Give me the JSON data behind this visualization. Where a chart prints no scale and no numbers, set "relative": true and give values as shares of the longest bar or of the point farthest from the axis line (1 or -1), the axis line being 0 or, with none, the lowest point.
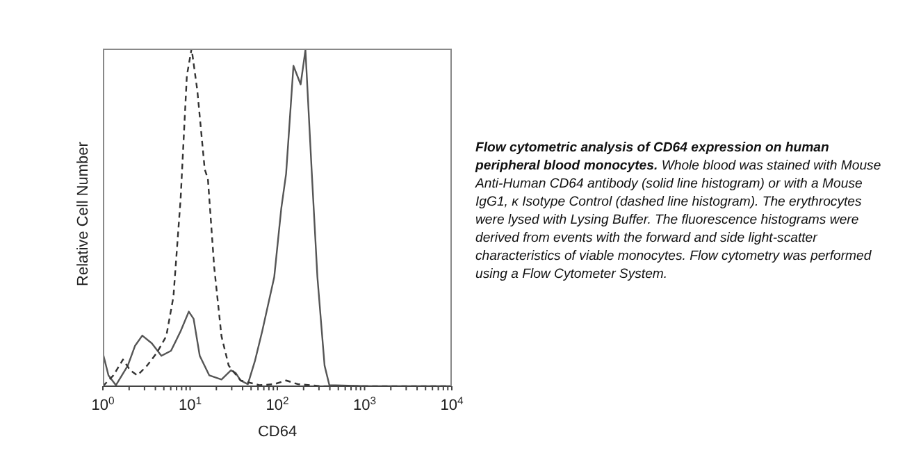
{
  "chart_data": {
    "type": "line",
    "relative": true,
    "log": "x",
    "title": "Flow cytometric analysis of CD64 expression on human peripheral blood monocytes.",
    "annotations": [
      "Whole blood was stained with Mouse Anti-Human CD64 antibody (solid line histogram) or with a Mouse IgG1, κ Isotype Control (dashed line histogram). The erythrocytes were lysed with Lysing Buffer. The fluorescence histograms were derived from events with the forward and side light-scatter characteristics of viable monocytes. Flow cytometry was performed using a Flow Cytometer System."
    ],
    "xlabel": "CD64",
    "ylabel": "Relative Cell Number",
    "xlim": [
      1,
      10000
    ],
    "xticks": [
      {
        "value": 1,
        "label": "10$^{0}$"
      },
      {
        "value": 2,
        "label": null
      },
      {
        "value": 3,
        "label": null
      },
      {
        "value": 4,
        "label": null
      },
      {
        "value": 5,
        "label": null
      },
      {
        "value": 6,
        "label": null
      },
      {
        "value": 7,
        "label": null
      },
      {
        "value": 8,
        "label": null
      },
      {
        "value": 9,
        "label": null
      },
      {
        "value": 10,
        "label": "10$^{1}$"
      },
      {
        "value": 20,
        "label": null
      },
      {
        "value": 30,
        "label": null
      },
      {
        "value": 40,
        "label": null
      },
      {
        "value": 50,
        "label": null
      },
      {
        "value": 60,
        "label": null
      },
      {
        "value": 70,
        "label": null
      },
      {
        "value": 80,
        "label": null
      },
      {
        "value": 90,
        "label": null
      },
      {
        "value": 100,
        "label": "10$^{2}$"
      },
      {
        "value": 200,
        "label": null
      },
      {
        "value": 300,
        "label": null
      },
      {
        "value": 400,
        "label": null
      },
      {
        "value": 500,
        "label": null
      },
      {
        "value": 600,
        "label": null
      },
      {
        "value": 700,
        "label": null
      },
      {
        "value": 800,
        "label": null
      },
      {
        "value": 900,
        "label": null
      },
      {
        "value": 1000,
        "label": "10$^{3}$"
      },
      {
        "value": 2000,
        "label": null
      },
      {
        "value": 3000,
        "label": null
      },
      {
        "value": 4000,
        "label": null
      },
      {
        "value": 5000,
        "label": null
      },
      {
        "value": 6000,
        "label": null
      },
      {
        "value": 7000,
        "label": null
      },
      {
        "value": 8000,
        "label": null
      },
      {
        "value": 9000,
        "label": null
      },
      {
        "value": 10000,
        "label": "10$^{4}$"
      }
    ],
    "grid": false,
    "legend": false,
    "marker": "none",
    "series": [
      {
        "color": "#555555",
        "line_style": "solid",
        "x": [
          1,
          1.16,
          1.41,
          1.93,
          2.34,
          2.83,
          3.64,
          4.69,
          6.04,
          7.79,
          9.66,
          10.96,
          12.9,
          16.6,
          22.9,
          29.4,
          33.4,
          37.9,
          45.9,
          55.5,
          67.1,
          92.1,
          111,
          126,
          153,
          185,
          210,
          247,
          288,
          348,
          395,
          1161,
          10000
        ],
        "values": [
          0.098,
          0.032,
          0.003,
          0.061,
          0.12,
          0.15,
          0.127,
          0.09,
          0.105,
          0.163,
          0.221,
          0.2,
          0.09,
          0.032,
          0.02,
          0.047,
          0.039,
          0.017,
          0.006,
          0.076,
          0.163,
          0.323,
          0.527,
          0.629,
          0.949,
          0.894,
          0.996,
          0.643,
          0.323,
          0.061,
          0.003,
          0,
          0
        ]
      },
      {
        "color": "#333333",
        "line_style": "dashed",
        "x": [
          1,
          1.32,
          1.7,
          2.06,
          2.49,
          3.21,
          4.13,
          5.33,
          6.44,
          7.79,
          9.18,
          10.4,
          12.1,
          14.7,
          16.0,
          18.9,
          22.9,
          27.7,
          37.9,
          63,
          92,
          126,
          173,
          327,
          10000
        ],
        "values": [
          0,
          0.032,
          0.079,
          0.047,
          0.032,
          0.061,
          0.098,
          0.148,
          0.265,
          0.556,
          0.92,
          1,
          0.876,
          0.643,
          0.614,
          0.352,
          0.148,
          0.061,
          0.017,
          0.003,
          0.006,
          0.017,
          0.006,
          0,
          0
        ]
      }
    ]
  }
}
